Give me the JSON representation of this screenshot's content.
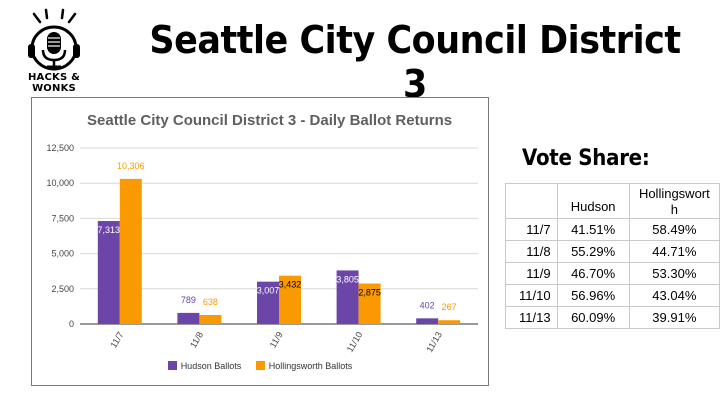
{
  "logo": {
    "text": "HACKS & WONKS"
  },
  "main_title": "Seattle City Council District 3",
  "colors": {
    "hudson": "#6b46a8",
    "hollingsworth": "#fb9a00"
  },
  "chart_data": {
    "type": "bar",
    "title": "Seattle City Council District 3 - Daily Ballot Returns",
    "categories": [
      "11/7",
      "11/8",
      "11/9",
      "11/10",
      "11/13"
    ],
    "series": [
      {
        "name": "Hudson Ballots",
        "values": [
          7313,
          789,
          3007,
          3805,
          402
        ],
        "labels": [
          "7,313",
          "789",
          "3,007",
          "3,805",
          "402"
        ]
      },
      {
        "name": "Hollingsworth Ballots",
        "values": [
          10306,
          638,
          3432,
          2875,
          267
        ],
        "labels": [
          "10,306",
          "638",
          "3,432",
          "2,875",
          "267"
        ]
      }
    ],
    "ylim": [
      0,
      12500
    ],
    "yticks": [
      0,
      2500,
      5000,
      7500,
      10000,
      12500
    ],
    "ytick_labels": [
      "0",
      "2,500",
      "5,000",
      "7,500",
      "10,000",
      "12,500"
    ],
    "grid": true,
    "legend": "bottom"
  },
  "vote_share": {
    "title": "Vote Share:",
    "headers": [
      "",
      "Hudson",
      "Hollingsworth"
    ],
    "rows": [
      {
        "date": "11/7",
        "hudson": "41.51%",
        "hollingsworth": "58.49%"
      },
      {
        "date": "11/8",
        "hudson": "55.29%",
        "hollingsworth": "44.71%"
      },
      {
        "date": "11/9",
        "hudson": "46.70%",
        "hollingsworth": "53.30%"
      },
      {
        "date": "11/10",
        "hudson": "56.96%",
        "hollingsworth": "43.04%"
      },
      {
        "date": "11/13",
        "hudson": "60.09%",
        "hollingsworth": "39.91%"
      }
    ]
  }
}
